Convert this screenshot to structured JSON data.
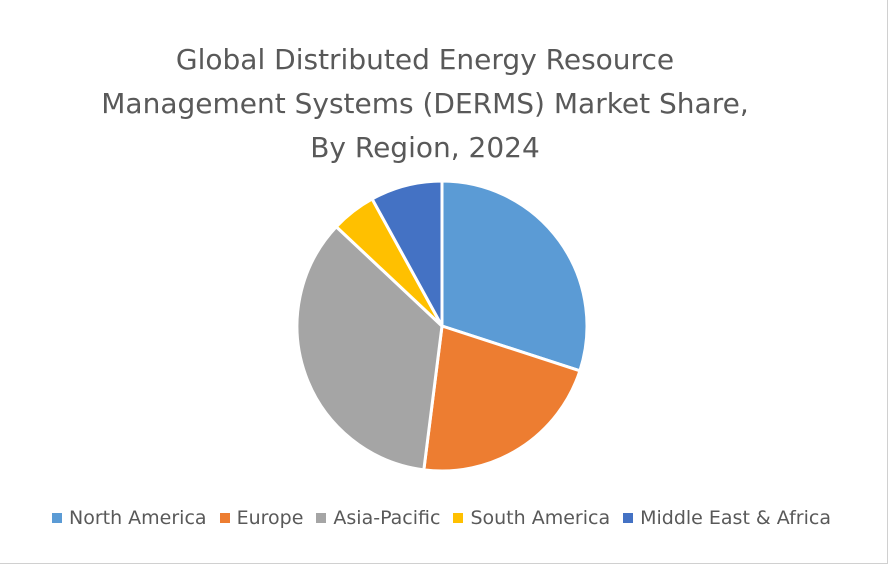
{
  "chart_data": {
    "type": "pie",
    "title_lines": [
      "Global Distributed Energy Resource",
      "Management Systems (DERMS) Market Share,",
      "By Region, 2024"
    ],
    "slices": [
      {
        "name": "North America",
        "value": 30.0,
        "color": "#5B9BD5"
      },
      {
        "name": "Europe",
        "value": 22.0,
        "color": "#ED7D31"
      },
      {
        "name": "Asia-Pacific",
        "value": 35.0,
        "color": "#A5A5A5"
      },
      {
        "name": "South America",
        "value": 5.0,
        "color": "#FFC000"
      },
      {
        "name": "Middle East & Africa",
        "value": 8.0,
        "color": "#4472C4"
      }
    ],
    "legend_position": "bottom"
  }
}
